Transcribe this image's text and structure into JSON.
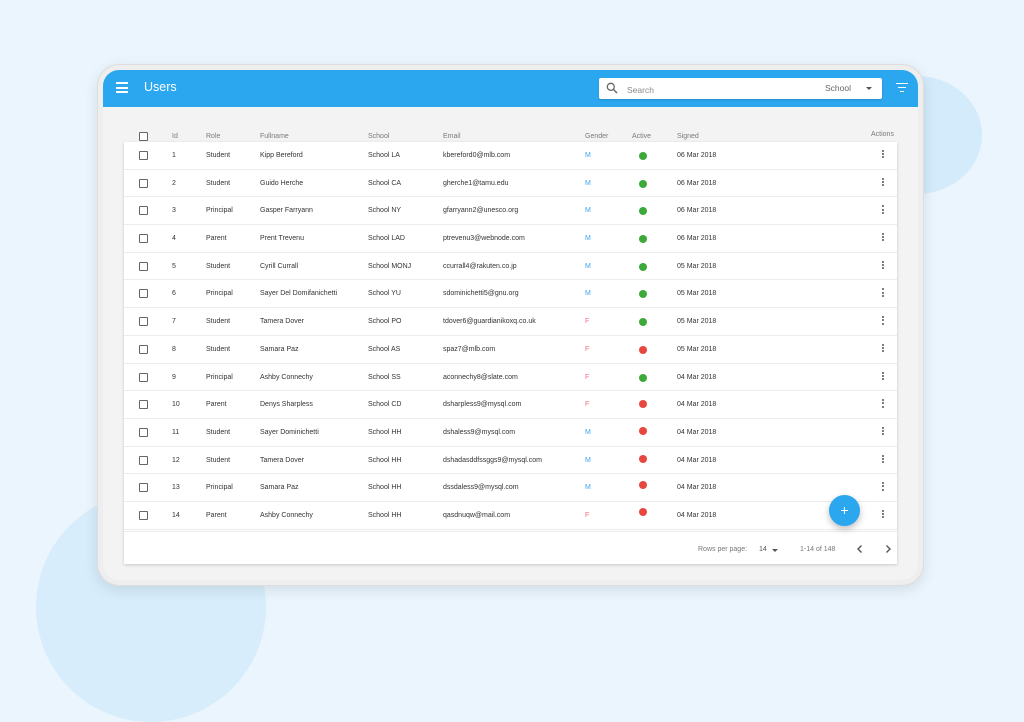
{
  "app": {
    "title": "Users"
  },
  "search": {
    "placeholder": "Search",
    "value": "",
    "school_filter": "School"
  },
  "columns": {
    "id": "Id",
    "role": "Role",
    "fullname": "Fullname",
    "school": "School",
    "email": "Email",
    "gender": "Gender",
    "active": "Active",
    "signed": "Signed",
    "actions": "Actions"
  },
  "rows": [
    {
      "id": "1",
      "role": "Student",
      "fullname": "Kipp Bereford",
      "school": "School LA",
      "email": "kbereford0@mlb.com",
      "gender": "M",
      "active": true,
      "signed": "06 Mar 2018"
    },
    {
      "id": "2",
      "role": "Student",
      "fullname": "Guido Herche",
      "school": "School CA",
      "email": "gherche1@tamu.edu",
      "gender": "M",
      "active": true,
      "signed": "06 Mar 2018"
    },
    {
      "id": "3",
      "role": "Principal",
      "fullname": "Gasper Farryann",
      "school": "School NY",
      "email": "gfarryann2@unesco.org",
      "gender": "M",
      "active": true,
      "signed": "06 Mar 2018"
    },
    {
      "id": "4",
      "role": "Parent",
      "fullname": "Prent Trevenu",
      "school": "School LAD",
      "email": "ptrevenu3@webnode.com",
      "gender": "M",
      "active": true,
      "signed": "06 Mar 2018"
    },
    {
      "id": "5",
      "role": "Student",
      "fullname": "Cyrill Currall",
      "school": "School  MONJ",
      "email": "ccurrall4@rakuten.co.jp",
      "gender": "M",
      "active": true,
      "signed": "05 Mar 2018"
    },
    {
      "id": "6",
      "role": "Principal",
      "fullname": "Sayer Del Domifanichetti",
      "school": "School YU",
      "email": "sdominichetti5@gnu.org",
      "gender": "M",
      "active": true,
      "signed": "05 Mar 2018"
    },
    {
      "id": "7",
      "role": "Student",
      "fullname": "Tamera Dover",
      "school": "School PO",
      "email": "tdover6@guardianikoxq.co.uk",
      "gender": "F",
      "active": true,
      "signed": "05 Mar 2018"
    },
    {
      "id": "8",
      "role": "Student",
      "fullname": "Samara Paz",
      "school": "School AS",
      "email": "spaz7@mlb.com",
      "gender": "F",
      "active": false,
      "signed": "05 Mar 2018"
    },
    {
      "id": "9",
      "role": "Principal",
      "fullname": "Ashby Connechy",
      "school": "School SS",
      "email": "aconnechy8@slate.com",
      "gender": "F",
      "active": true,
      "signed": "04 Mar 2018"
    },
    {
      "id": "10",
      "role": "Parent",
      "fullname": "Denys Sharpless",
      "school": "School CD",
      "email": "dsharpless9@mysql.com",
      "gender": "F",
      "active": false,
      "signed": "04 Mar 2018"
    },
    {
      "id": "11",
      "role": "Student",
      "fullname": "Sayer Dominichetti",
      "school": "School HH",
      "email": "dshaless9@mysql.com",
      "gender": "M",
      "active": false,
      "signed": "04 Mar 2018"
    },
    {
      "id": "12",
      "role": "Student",
      "fullname": "Tamera Dover",
      "school": "School HH",
      "email": "dshadasddfssggs9@mysql.com",
      "gender": "M",
      "active": false,
      "signed": "04 Mar 2018"
    },
    {
      "id": "13",
      "role": "Principal",
      "fullname": "Samara Paz",
      "school": "School HH",
      "email": "dssdaless9@mysql.com",
      "gender": "M",
      "active": false,
      "signed": "04 Mar 2018"
    },
    {
      "id": "14",
      "role": "Parent",
      "fullname": "Ashby Connechy",
      "school": "School HH",
      "email": "qasdnuqw@mail.com",
      "gender": "F",
      "active": false,
      "signed": "04 Mar 2018"
    }
  ],
  "footer": {
    "rows_per_page_label": "Rows per page:",
    "rows_per_page": "14",
    "range": "1-14 of 148"
  },
  "fab": {
    "label": "+"
  },
  "icons": {
    "menu": "menu-icon",
    "search": "search-icon",
    "filter": "filter-icon",
    "more": "more-vert-icon",
    "prev": "chevron-left-icon",
    "next": "chevron-right-icon",
    "add": "plus-icon"
  },
  "colors": {
    "accent": "#2ba7f0",
    "active": "#3da93b",
    "inactive": "#e8473f",
    "male": "#3aa6ef",
    "female": "#f06b7a"
  }
}
